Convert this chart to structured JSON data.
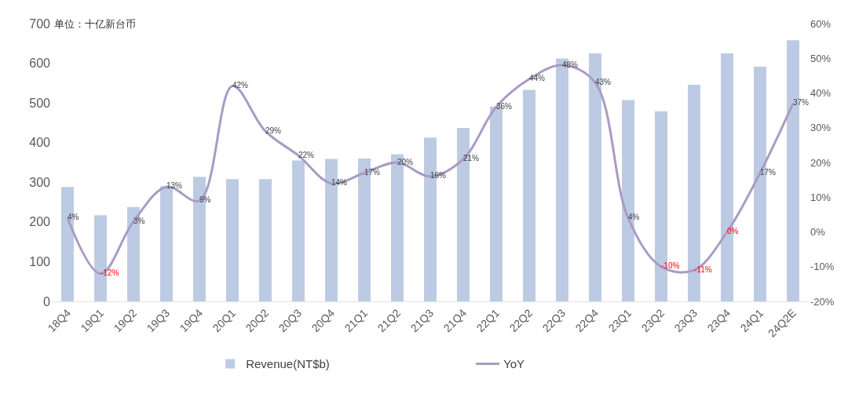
{
  "chart_data": {
    "type": "bar",
    "annotations": [
      "单位：十亿新台币"
    ],
    "categories": [
      "18Q4",
      "19Q1",
      "19Q2",
      "19Q3",
      "19Q4",
      "20Q1",
      "20Q2",
      "20Q3",
      "20Q4",
      "21Q1",
      "21Q2",
      "21Q3",
      "21Q4",
      "22Q1",
      "22Q2",
      "22Q3",
      "22Q4",
      "23Q1",
      "23Q2",
      "23Q3",
      "23Q4",
      "24Q1",
      "24Q2E"
    ],
    "series": [
      {
        "name": "Revenue(NT$b)",
        "color": "#bccbe3",
        "values": [
          288,
          217,
          238,
          290,
          314,
          308,
          308,
          355,
          359,
          360,
          371,
          413,
          437,
          491,
          533,
          612,
          625,
          507,
          479,
          546,
          625,
          591,
          658
        ]
      },
      {
        "name": "YoY",
        "type": "line",
        "axis": "y2",
        "color": "#a99bc4",
        "values": [
          4,
          -12,
          3,
          13,
          9,
          42,
          29,
          22,
          14,
          17,
          20,
          16,
          21,
          36,
          44,
          48,
          43,
          4,
          -10,
          -11,
          0,
          17,
          37
        ],
        "value_labels": [
          "4%",
          "-12%",
          "3%",
          "13%",
          "9%",
          "42%",
          "29%",
          "22%",
          "14%",
          "17%",
          "20%",
          "16%",
          "21%",
          "36%",
          "44%",
          "48%",
          "43%",
          "4%",
          "-10%",
          "-11%",
          "0%",
          "17%",
          "37%"
        ]
      }
    ],
    "ylim": [
      0,
      700
    ],
    "yticks": [
      0,
      100,
      200,
      300,
      400,
      500,
      600,
      700
    ],
    "y2lim": [
      -20,
      60
    ],
    "y2ticks": [
      {
        "value": -20,
        "label": "-20%"
      },
      {
        "value": -10,
        "label": "-10%"
      },
      {
        "value": 0,
        "label": "0%"
      },
      {
        "value": 10,
        "label": "10%"
      },
      {
        "value": 20,
        "label": "20%"
      },
      {
        "value": 30,
        "label": "30%"
      },
      {
        "value": 40,
        "label": "40%"
      },
      {
        "value": 50,
        "label": "50%"
      },
      {
        "value": 60,
        "label": "60%"
      }
    ],
    "legend": "bottom"
  }
}
